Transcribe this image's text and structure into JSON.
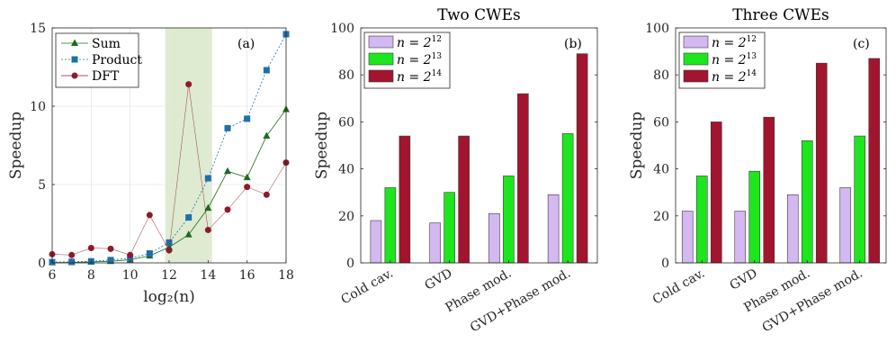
{
  "chart_data": [
    {
      "type": "line",
      "panel_label": "(a)",
      "xlabel": "log₂(n)",
      "ylabel": "Speedup",
      "xlim": [
        6,
        18
      ],
      "ylim": [
        0,
        15
      ],
      "xticks": [
        "6",
        "8",
        "10",
        "12",
        "14",
        "16",
        "18"
      ],
      "yticks": [
        "0",
        "5",
        "10",
        "15"
      ],
      "grid": true,
      "legend_position": "top-left",
      "highlight_region": [
        11.8,
        14.2
      ],
      "x": [
        6,
        7,
        8,
        9,
        10,
        11,
        12,
        13,
        14,
        15,
        16,
        17,
        18
      ],
      "series": [
        {
          "name": "Sum",
          "marker": "triangle",
          "color": "#1d6b1d",
          "values": [
            0.02,
            0.03,
            0.06,
            0.1,
            0.2,
            0.45,
            1.0,
            1.8,
            3.5,
            5.85,
            5.45,
            8.1,
            9.8
          ]
        },
        {
          "name": "Product",
          "marker": "square",
          "color": "#1f6fa8",
          "values": [
            0.05,
            0.07,
            0.1,
            0.18,
            0.3,
            0.6,
            1.3,
            2.9,
            5.4,
            8.6,
            9.2,
            12.3,
            14.6
          ]
        },
        {
          "name": "DFT",
          "marker": "circle",
          "color": "#8b1a2b",
          "values": [
            0.55,
            0.5,
            0.95,
            0.9,
            0.5,
            3.05,
            0.8,
            11.4,
            2.1,
            3.4,
            4.85,
            4.35,
            6.4
          ]
        }
      ]
    },
    {
      "type": "bar",
      "title": "Two CWEs",
      "panel_label": "(b)",
      "ylabel": "Speedup",
      "ylim": [
        0,
        100
      ],
      "yticks": [
        "0",
        "20",
        "40",
        "60",
        "80",
        "100"
      ],
      "categories": [
        "Cold cav.",
        "GVD",
        "Phase mod.",
        "GVD+Phase mod."
      ],
      "legend_position": "top-left",
      "series": [
        {
          "name": "n = 2",
          "exp": "12",
          "color": "#d4b8f2",
          "values": [
            18,
            17,
            21,
            29
          ]
        },
        {
          "name": "n = 2",
          "exp": "13",
          "color": "#1ee61e",
          "values": [
            32,
            30,
            37,
            55
          ]
        },
        {
          "name": "n = 2",
          "exp": "14",
          "color": "#a3142e",
          "values": [
            54,
            54,
            72,
            89
          ]
        }
      ]
    },
    {
      "type": "bar",
      "title": "Three CWEs",
      "panel_label": "(c)",
      "ylabel": "Speedup",
      "ylim": [
        0,
        100
      ],
      "yticks": [
        "0",
        "20",
        "40",
        "60",
        "80",
        "100"
      ],
      "categories": [
        "Cold cav.",
        "GVD",
        "Phase mod.",
        "GVD+Phase mod."
      ],
      "legend_position": "top-left",
      "series": [
        {
          "name": "n = 2",
          "exp": "12",
          "color": "#d4b8f2",
          "values": [
            22,
            22,
            29,
            32
          ]
        },
        {
          "name": "n = 2",
          "exp": "13",
          "color": "#1ee61e",
          "values": [
            37,
            39,
            52,
            54
          ]
        },
        {
          "name": "n = 2",
          "exp": "14",
          "color": "#a3142e",
          "values": [
            60,
            62,
            85,
            87
          ]
        }
      ]
    }
  ]
}
